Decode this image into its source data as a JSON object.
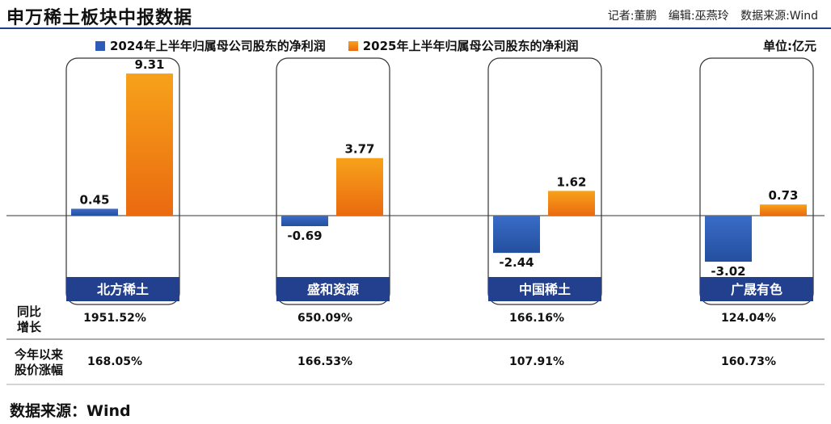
{
  "header": {
    "title": "申万稀土板块中报数据",
    "reporter": "记者:董鹏",
    "editor": "编辑:巫燕玲",
    "source": "数据来源:Wind"
  },
  "unit": "单位:亿元",
  "footer": {
    "label": "数据来源：",
    "value": "Wind"
  },
  "colors": {
    "series_2024": "#2e5bb8",
    "series_2025": "#ef7a10",
    "name_band": "#23408f",
    "header_rule": "#1f3f86"
  },
  "row_labels": {
    "yoy_line1": "同比",
    "yoy_line2": "增长",
    "stock_line1": "今年以来",
    "stock_line2": "股价涨幅"
  },
  "chart_data": {
    "type": "bar",
    "title": "申万稀土板块中报数据",
    "ylabel": "",
    "unit": "亿元",
    "ylim": [
      -3.5,
      9.5
    ],
    "grid": false,
    "legend_position": "top",
    "categories": [
      "北方稀土",
      "盛和资源",
      "中国稀土",
      "广晟有色"
    ],
    "series": [
      {
        "name": "2024年上半年归属母公司股东的净利润",
        "values": [
          0.45,
          -0.69,
          -2.44,
          -3.02
        ]
      },
      {
        "name": "2025年上半年归属母公司股东的净利润",
        "values": [
          9.31,
          3.77,
          1.62,
          0.73
        ]
      }
    ],
    "value_labels": [
      [
        "0.45",
        "-0.69",
        "-2.44",
        "-3.02"
      ],
      [
        "9.31",
        "3.77",
        "1.62",
        "0.73"
      ]
    ],
    "yoy_growth": [
      "1951.52%",
      "650.09%",
      "166.16%",
      "124.04%"
    ],
    "stock_change_ytd": [
      "168.05%",
      "166.53%",
      "107.91%",
      "160.73%"
    ]
  }
}
